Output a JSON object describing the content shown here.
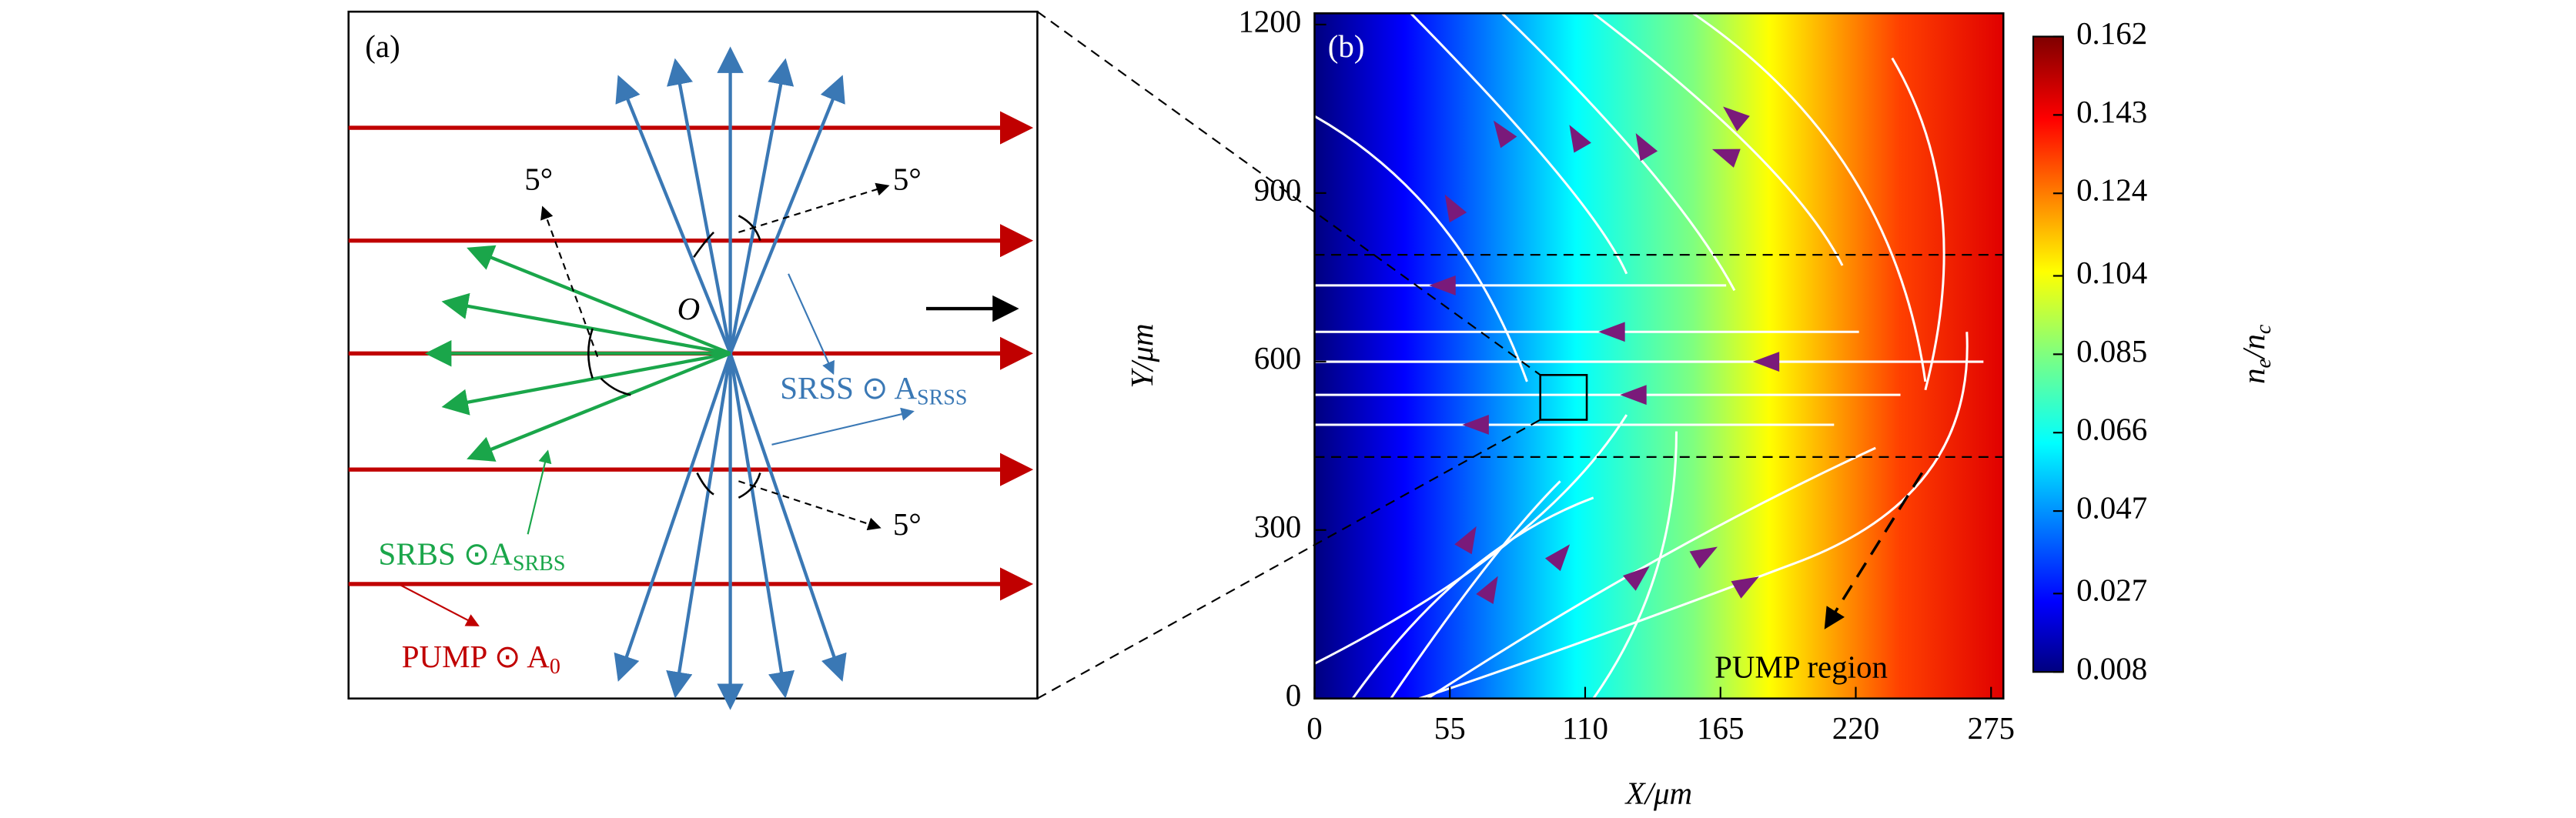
{
  "panel_a": {
    "tag": "(a)",
    "origin": "O",
    "angle_labels": [
      "5°",
      "5°",
      "5°"
    ],
    "srss": "SRSS ⊙ A",
    "srss_sub": "SRSS",
    "srbs": "SRBS ⊙A",
    "srbs_sub": "SRBS",
    "pump": "PUMP ⊙ A",
    "pump_sub": "0"
  },
  "chart_data": {
    "type": "heatmap",
    "tag": "(b)",
    "annotation": "PUMP region",
    "xlabel": "X/μm",
    "ylabel": "Y/μm",
    "xlim": [
      0,
      280
    ],
    "xticks": [
      0,
      55,
      110,
      165,
      220,
      275
    ],
    "ylim": [
      0,
      1220
    ],
    "yticks": [
      0,
      300,
      600,
      900,
      1200
    ],
    "dashed_y": [
      790,
      430
    ],
    "colorbar_label": [
      "n",
      "e",
      "/n",
      "c"
    ],
    "clim": [
      0.008,
      0.162
    ],
    "cticks": [
      0.008,
      0.027,
      0.047,
      0.066,
      0.085,
      0.104,
      0.124,
      0.143,
      0.162
    ]
  }
}
